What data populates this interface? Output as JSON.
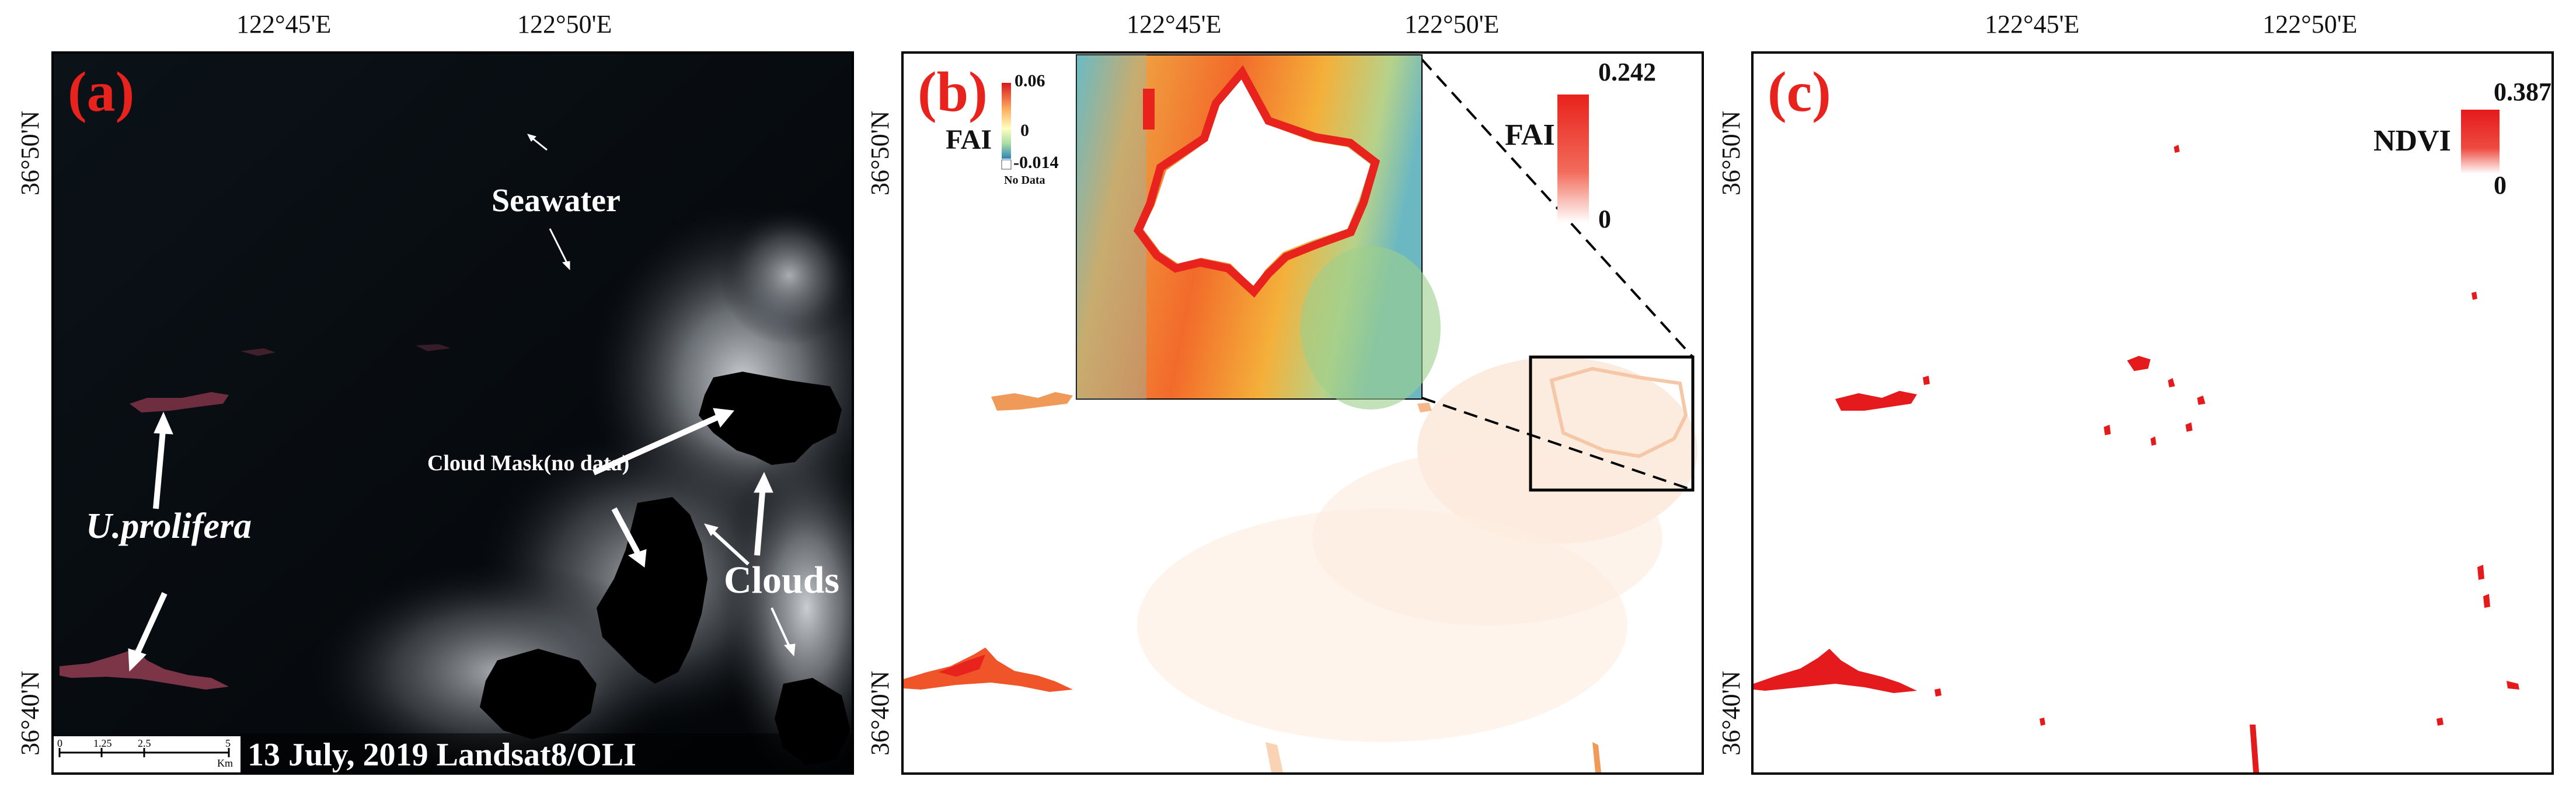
{
  "coords": {
    "lon_1": "122°45'E",
    "lon_2": "122°50'E",
    "lat_top": "36°50'N",
    "lat_bottom": "36°40'N"
  },
  "panel_a": {
    "letter": "(a)",
    "seawater": "Seawater",
    "cloud_mask": "Cloud Mask(no data)",
    "uprolifera": "U.prolifera",
    "clouds": "Clouds",
    "caption": "13 July, 2019 Landsat8/OLI",
    "scalebar": {
      "ticks": [
        "0",
        "1.25",
        "2.5",
        "5"
      ],
      "unit": "Km"
    }
  },
  "panel_b": {
    "letter": "(b)",
    "inset_legend": {
      "max": "0.06",
      "mid": "0",
      "min": "-0.014",
      "nodata": "No Data",
      "title": "FAI"
    },
    "legend": {
      "title": "FAI",
      "max": "0.242",
      "min": "0"
    }
  },
  "panel_c": {
    "letter": "(c)",
    "legend": {
      "title": "NDVI",
      "max": "0.387",
      "min": "0"
    }
  },
  "colors": {
    "accent_red": "#e8221c",
    "algae_pink": "#8a3a4e",
    "fai_orange": "#f07a3a",
    "ndvi_red": "#e41a1c"
  }
}
